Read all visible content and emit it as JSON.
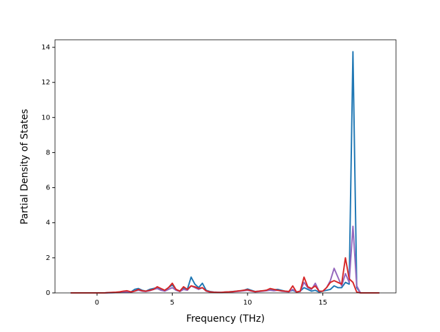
{
  "chart_data": {
    "type": "line",
    "x_label": "Frequency (THz)",
    "y_label": "Partial Density of States",
    "x": [
      -1.75,
      -1.5,
      -1.25,
      -1,
      -0.75,
      -0.5,
      -0.25,
      0,
      0.25,
      0.5,
      0.75,
      1,
      1.25,
      1.5,
      1.75,
      2,
      2.25,
      2.5,
      2.75,
      3,
      3.25,
      3.5,
      3.75,
      4,
      4.25,
      4.5,
      4.75,
      5,
      5.25,
      5.5,
      5.75,
      6,
      6.25,
      6.5,
      6.75,
      7,
      7.25,
      7.5,
      7.75,
      8,
      8.25,
      8.5,
      8.75,
      9,
      9.25,
      9.5,
      9.75,
      10,
      10.25,
      10.5,
      10.75,
      11,
      11.25,
      11.5,
      11.75,
      12,
      12.25,
      12.5,
      12.75,
      13,
      13.25,
      13.5,
      13.75,
      14,
      14.25,
      14.5,
      14.75,
      15,
      15.25,
      15.5,
      15.75,
      16,
      16.25,
      16.5,
      16.75,
      17,
      17.25,
      17.5,
      17.75,
      18,
      18.25,
      18.5,
      18.75
    ],
    "series": [
      {
        "color": "#1f77b4",
        "values": [
          0,
          0,
          0,
          0,
          0,
          0,
          0,
          0,
          0,
          0,
          0.01,
          0.02,
          0.03,
          0.05,
          0.06,
          0.08,
          0.05,
          0.2,
          0.25,
          0.15,
          0.1,
          0.2,
          0.25,
          0.3,
          0.2,
          0.15,
          0.3,
          0.45,
          0.2,
          0.1,
          0.3,
          0.2,
          0.9,
          0.5,
          0.3,
          0.55,
          0.15,
          0.08,
          0.05,
          0.04,
          0.03,
          0.05,
          0.06,
          0.08,
          0.1,
          0.12,
          0.15,
          0.22,
          0.15,
          0.08,
          0.1,
          0.12,
          0.15,
          0.2,
          0.18,
          0.2,
          0.15,
          0.1,
          0.08,
          0.15,
          0.05,
          0.1,
          0.3,
          0.2,
          0.1,
          0.15,
          0.05,
          0.1,
          0.15,
          0.2,
          0.4,
          0.3,
          0.3,
          0.6,
          0.5,
          13.75,
          0.3,
          0,
          0,
          0,
          0,
          0,
          0
        ]
      },
      {
        "color": "#9467bd",
        "values": [
          0,
          0,
          0,
          0,
          0,
          0,
          0,
          0,
          0,
          0,
          0.01,
          0.01,
          0.02,
          0.03,
          0.04,
          0.05,
          0.04,
          0.1,
          0.15,
          0.1,
          0.08,
          0.12,
          0.2,
          0.25,
          0.15,
          0.1,
          0.2,
          0.3,
          0.15,
          0.08,
          0.2,
          0.15,
          0.4,
          0.3,
          0.2,
          0.3,
          0.1,
          0.05,
          0.03,
          0.03,
          0.02,
          0.04,
          0.05,
          0.06,
          0.08,
          0.1,
          0.12,
          0.15,
          0.1,
          0.06,
          0.08,
          0.1,
          0.12,
          0.15,
          0.12,
          0.15,
          0.1,
          0.08,
          0.06,
          0.2,
          0.05,
          0.08,
          0.6,
          0.3,
          0.2,
          0.55,
          0.1,
          0.1,
          0.3,
          0.7,
          1.4,
          0.9,
          0.4,
          1.1,
          0.6,
          3.8,
          0.4,
          0,
          0,
          0,
          0,
          0,
          0
        ]
      },
      {
        "color": "#d62728",
        "values": [
          0,
          0,
          0,
          0,
          0,
          0,
          0,
          0,
          0,
          0,
          0.02,
          0.03,
          0.04,
          0.06,
          0.1,
          0.12,
          0.06,
          0.1,
          0.2,
          0.12,
          0.1,
          0.15,
          0.2,
          0.35,
          0.25,
          0.15,
          0.3,
          0.55,
          0.2,
          0.1,
          0.35,
          0.2,
          0.4,
          0.35,
          0.25,
          0.3,
          0.12,
          0.06,
          0.04,
          0.03,
          0.03,
          0.05,
          0.06,
          0.07,
          0.1,
          0.12,
          0.15,
          0.18,
          0.12,
          0.07,
          0.1,
          0.12,
          0.15,
          0.25,
          0.2,
          0.15,
          0.12,
          0.1,
          0.08,
          0.4,
          0.05,
          0.1,
          0.9,
          0.35,
          0.25,
          0.4,
          0.1,
          0.1,
          0.3,
          0.6,
          0.7,
          0.6,
          0.5,
          2.0,
          0.8,
          0.6,
          0.05,
          0,
          0,
          0,
          0,
          0,
          0
        ]
      }
    ],
    "xlim": [
      -2.79,
      19.86
    ],
    "ylim": [
      0,
      14.43
    ],
    "xticks": [
      0,
      5,
      10,
      15
    ],
    "yticks": [
      0,
      2,
      4,
      6,
      8,
      10,
      12,
      14
    ]
  }
}
